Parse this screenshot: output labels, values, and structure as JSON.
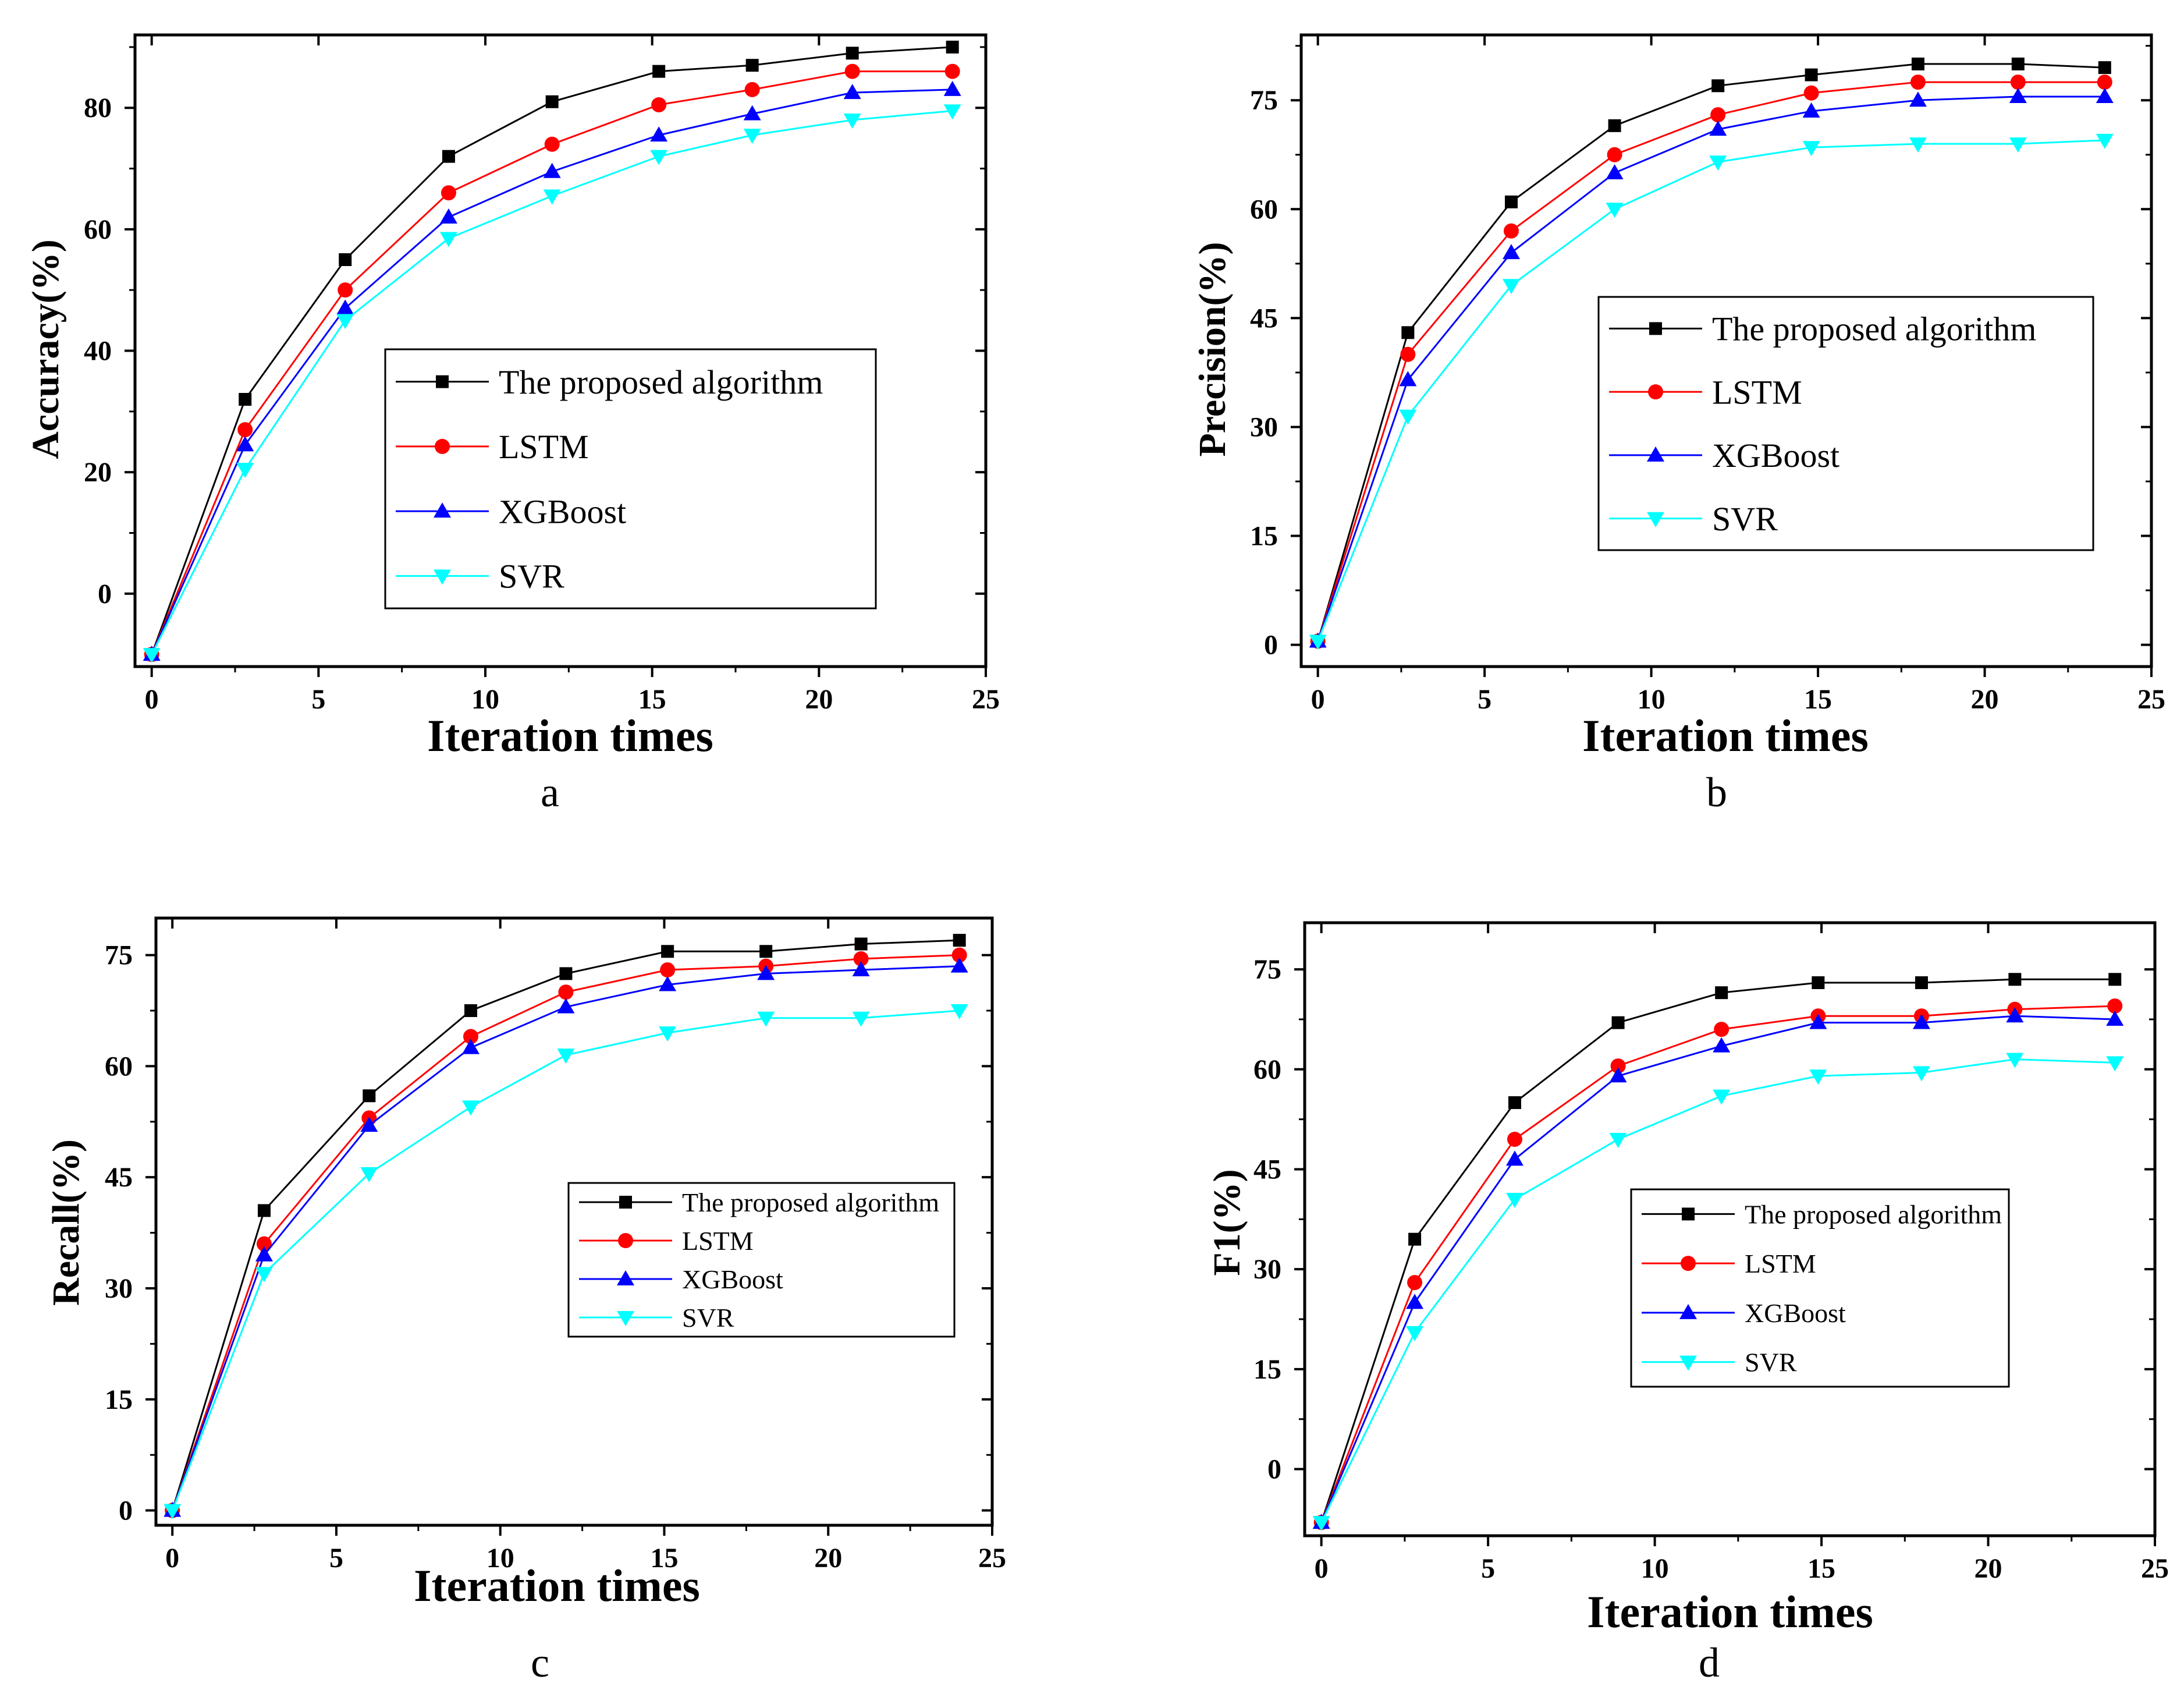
{
  "colors": {
    "proposed": "#000000",
    "lstm": "#ff0000",
    "xgboost": "#0000ff",
    "svr": "#00ffff"
  },
  "chart_data": [
    {
      "type": "line",
      "panel_label": "a",
      "xlabel": "Iteration times",
      "ylabel": "Accuracy(%)",
      "xlim": [
        -0.5,
        25
      ],
      "ylim": [
        -12,
        92
      ],
      "xticks": [
        0,
        5,
        10,
        15,
        20,
        25
      ],
      "yticks": [
        0,
        20,
        40,
        60,
        80
      ],
      "x": [
        0,
        2.8,
        5.8,
        8.9,
        12,
        15.2,
        18,
        21,
        24
      ],
      "series": [
        {
          "name": "The proposed algorithm",
          "marker": "square",
          "values": [
            -10,
            32,
            55,
            72,
            81,
            86,
            87,
            89,
            90
          ]
        },
        {
          "name": "LSTM",
          "marker": "circle",
          "values": [
            -10,
            27,
            50,
            66,
            74,
            80.5,
            83,
            86,
            86
          ]
        },
        {
          "name": "XGBoost",
          "marker": "triangle-up",
          "values": [
            -10,
            24.5,
            47,
            62,
            69.5,
            75.5,
            79,
            82.5,
            83
          ]
        },
        {
          "name": "SVR",
          "marker": "triangle-down",
          "values": [
            -10,
            20.5,
            45,
            58.5,
            65.5,
            72,
            75.5,
            78,
            79.5
          ]
        }
      ],
      "legend": {
        "placement": "center-right"
      }
    },
    {
      "type": "line",
      "panel_label": "b",
      "xlabel": "Iteration times",
      "ylabel": "Precision(%)",
      "xlim": [
        -0.5,
        25
      ],
      "ylim": [
        -3,
        84
      ],
      "xticks": [
        0,
        5,
        10,
        15,
        20,
        25
      ],
      "yticks": [
        0,
        15,
        30,
        45,
        60,
        75
      ],
      "x": [
        0,
        2.7,
        5.8,
        8.9,
        12,
        14.8,
        18,
        21,
        23.6
      ],
      "series": [
        {
          "name": "The proposed algorithm",
          "marker": "square",
          "values": [
            0.5,
            43,
            61,
            71.5,
            77,
            78.5,
            80,
            80,
            79.5
          ]
        },
        {
          "name": "LSTM",
          "marker": "circle",
          "values": [
            0.5,
            40,
            57,
            67.5,
            73,
            76,
            77.5,
            77.5,
            77.5
          ]
        },
        {
          "name": "XGBoost",
          "marker": "triangle-up",
          "values": [
            0.5,
            36.5,
            54,
            65,
            71,
            73.5,
            75,
            75.5,
            75.5
          ]
        },
        {
          "name": "SVR",
          "marker": "triangle-down",
          "values": [
            0.5,
            31.5,
            49.5,
            60,
            66.5,
            68.5,
            69,
            69,
            69.5
          ]
        }
      ],
      "legend": {
        "placement": "center-right"
      }
    },
    {
      "type": "line",
      "panel_label": "c",
      "xlabel": "Iteration times",
      "ylabel": "Recall(%)",
      "xlim": [
        -0.5,
        25
      ],
      "ylim": [
        -2,
        80
      ],
      "xticks": [
        0,
        5,
        10,
        15,
        20,
        25
      ],
      "yticks": [
        0,
        15,
        30,
        45,
        60,
        75
      ],
      "x": [
        0,
        2.8,
        6,
        9.1,
        12,
        15.1,
        18.1,
        21,
        24
      ],
      "series": [
        {
          "name": "The proposed algorithm",
          "marker": "square",
          "values": [
            0,
            40.5,
            56,
            67.5,
            72.5,
            75.5,
            75.5,
            76.5,
            77
          ]
        },
        {
          "name": "LSTM",
          "marker": "circle",
          "values": [
            0,
            36,
            53,
            64,
            70,
            73,
            73.5,
            74.5,
            75
          ]
        },
        {
          "name": "XGBoost",
          "marker": "triangle-up",
          "values": [
            0,
            34.5,
            52,
            62.5,
            68,
            71,
            72.5,
            73,
            73.5
          ]
        },
        {
          "name": "SVR",
          "marker": "triangle-down",
          "values": [
            0,
            32,
            45.5,
            54.5,
            61.5,
            64.5,
            66.5,
            66.5,
            67.5
          ]
        }
      ],
      "legend": {
        "placement": "center-right"
      }
    },
    {
      "type": "line",
      "panel_label": "d",
      "xlabel": "Iteration times",
      "ylabel": "F1(%)",
      "xlim": [
        -0.5,
        25
      ],
      "ylim": [
        -10,
        82
      ],
      "xticks": [
        0,
        5,
        10,
        15,
        20,
        25
      ],
      "yticks": [
        0,
        15,
        30,
        45,
        60,
        75
      ],
      "x": [
        0,
        2.8,
        5.8,
        8.9,
        12,
        14.9,
        18,
        20.8,
        23.8
      ],
      "series": [
        {
          "name": "The proposed algorithm",
          "marker": "square",
          "values": [
            -8,
            34.5,
            55,
            67,
            71.5,
            73,
            73,
            73.5,
            73.5
          ]
        },
        {
          "name": "LSTM",
          "marker": "circle",
          "values": [
            -8,
            28,
            49.5,
            60.5,
            66,
            68,
            68,
            69,
            69.5
          ]
        },
        {
          "name": "XGBoost",
          "marker": "triangle-up",
          "values": [
            -8,
            25,
            46.5,
            59,
            63.5,
            67,
            67,
            68,
            67.5
          ]
        },
        {
          "name": "SVR",
          "marker": "triangle-down",
          "values": [
            -8,
            20.5,
            40.5,
            49.5,
            56,
            59,
            59.5,
            61.5,
            61
          ]
        }
      ],
      "legend": {
        "placement": "center-right"
      }
    }
  ]
}
